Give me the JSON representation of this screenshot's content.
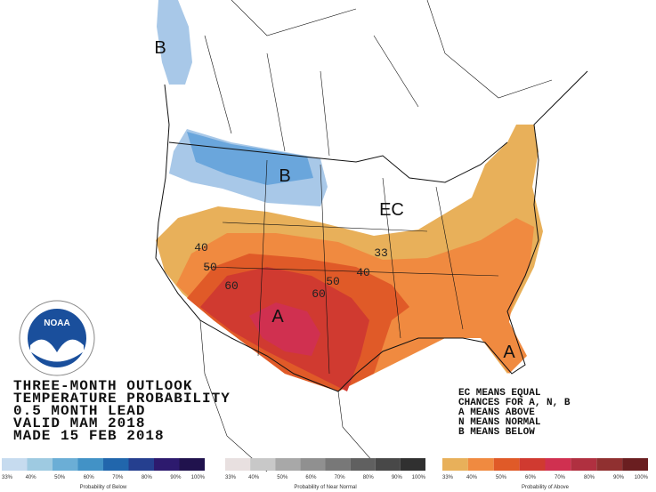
{
  "map": {
    "labels": [
      "B",
      "B",
      "EC",
      "A",
      "A"
    ],
    "contours": [
      "40",
      "50",
      "60",
      "33",
      "40",
      "50",
      "60"
    ],
    "header": [
      "THREE-MONTH OUTLOOK",
      "TEMPERATURE PROBABILITY",
      "0.5 MONTH LEAD",
      "VALID MAM 2018",
      "MADE 15 FEB 2018"
    ],
    "key": [
      "EC MEANS EQUAL",
      "CHANCES FOR A, N, B",
      "A MEANS ABOVE",
      "N MEANS NORMAL",
      "B MEANS BELOW"
    ],
    "logo": "NOAA",
    "legend": [
      {
        "caption": "Probability of Below",
        "colors": [
          "#c6dbef",
          "#9ecae1",
          "#6baed6",
          "#4292c6",
          "#2166ac",
          "#253f8f",
          "#2d1a6e",
          "#20124d"
        ],
        "ticks": [
          "33%",
          "40%",
          "50%",
          "60%",
          "70%",
          "80%",
          "90%",
          "100%"
        ]
      },
      {
        "caption": "Probability of Near Normal",
        "colors": [
          "#e8e0e0",
          "#c8c8c8",
          "#a8a8a8",
          "#909090",
          "#787878",
          "#606060",
          "#484848",
          "#303030"
        ],
        "ticks": [
          "33%",
          "40%",
          "50%",
          "60%",
          "70%",
          "80%",
          "90%",
          "100%"
        ]
      },
      {
        "caption": "Probability of Above",
        "colors": [
          "#e8b05a",
          "#f08a40",
          "#e05a28",
          "#d03a30",
          "#d03050",
          "#b03040",
          "#903030",
          "#6a1e20"
        ],
        "ticks": [
          "33%",
          "40%",
          "50%",
          "60%",
          "70%",
          "80%",
          "90%",
          "100%"
        ]
      }
    ]
  }
}
